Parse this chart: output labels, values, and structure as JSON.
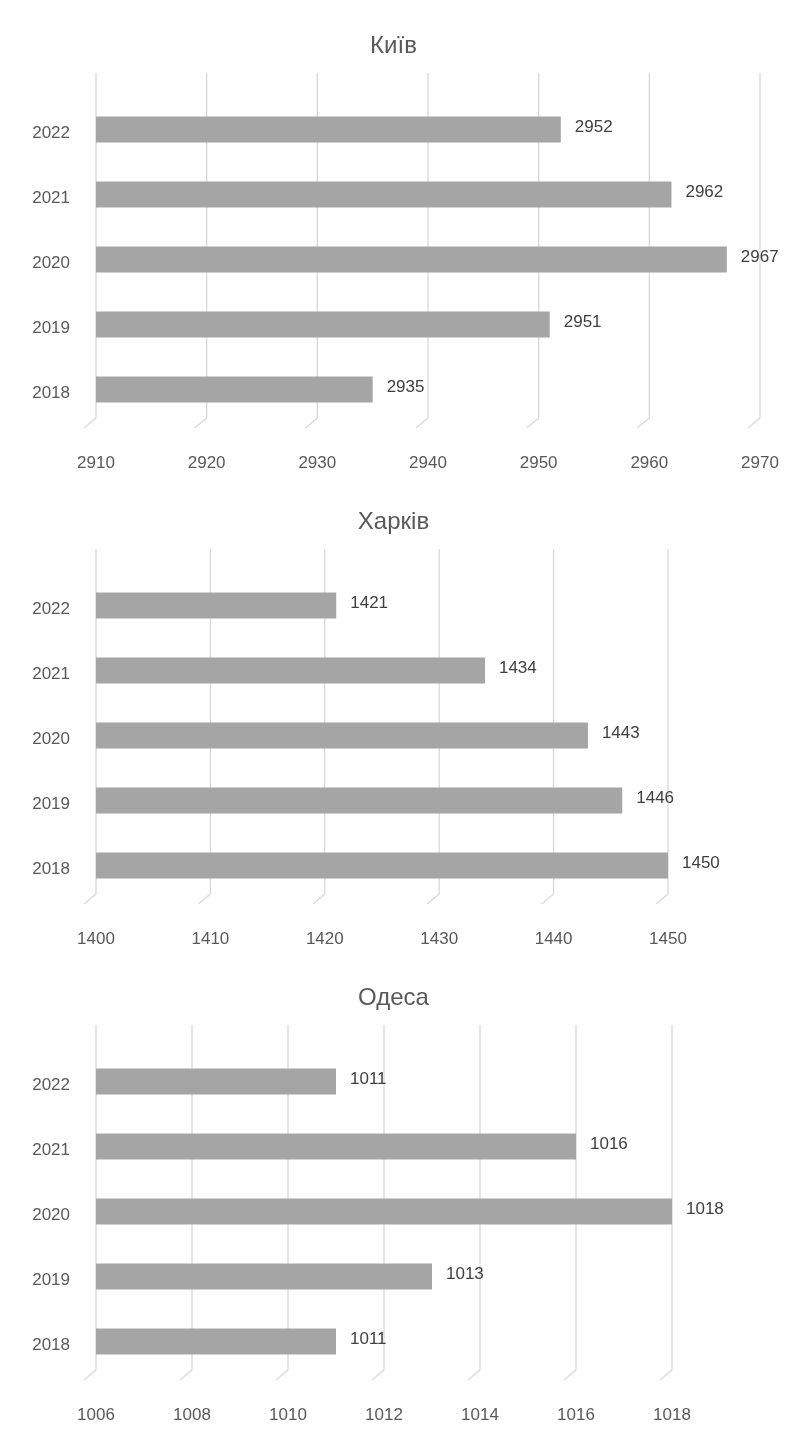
{
  "chart_data": [
    {
      "type": "bar",
      "orientation": "horizontal",
      "title": "Київ",
      "categories": [
        "2022",
        "2021",
        "2020",
        "2019",
        "2018"
      ],
      "values": [
        2952,
        2962,
        2967,
        2951,
        2935
      ],
      "color": "#a5a5a5",
      "xlim": [
        2910,
        2970
      ],
      "xticks": [
        2910,
        2920,
        2930,
        2940,
        2950,
        2960,
        2970
      ],
      "grid": "x",
      "data_labels": true
    },
    {
      "type": "bar",
      "orientation": "horizontal",
      "title": "Харків",
      "categories": [
        "2022",
        "2021",
        "2020",
        "2019",
        "2018"
      ],
      "values": [
        1421,
        1434,
        1443,
        1446,
        1450
      ],
      "color": "#a5a5a5",
      "xlim": [
        1400,
        1450
      ],
      "xticks": [
        1400,
        1410,
        1420,
        1430,
        1440,
        1450
      ],
      "grid": "x",
      "data_labels": true
    },
    {
      "type": "bar",
      "orientation": "horizontal",
      "title": "Одеса",
      "categories": [
        "2022",
        "2021",
        "2020",
        "2019",
        "2018"
      ],
      "values": [
        1011,
        1016,
        1018,
        1013,
        1011
      ],
      "color": "#a5a5a5",
      "xlim": [
        1006,
        1018
      ],
      "xticks": [
        1006,
        1008,
        1010,
        1012,
        1014,
        1016,
        1018
      ],
      "grid": "x",
      "data_labels": true
    }
  ]
}
